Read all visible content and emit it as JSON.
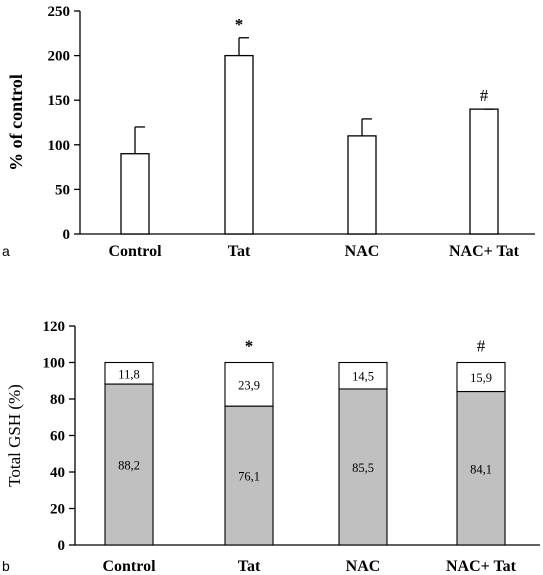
{
  "chart_data": [
    {
      "panel_label": "a",
      "type": "bar",
      "categories": [
        "Control",
        "Tat",
        "NAC",
        "NAC+ Tat"
      ],
      "values": [
        90,
        200,
        110,
        140
      ],
      "error_upper": [
        120,
        220,
        129,
        140
      ],
      "annotations": [
        "",
        "*",
        "",
        "#"
      ],
      "ylabel": "% of control",
      "ylim": [
        0,
        250
      ],
      "yticks": [
        "0",
        "50",
        "100",
        "150",
        "200",
        "250"
      ],
      "grid": false,
      "colors": {
        "bar_fill": "#ffffff",
        "stroke": "#000000"
      }
    },
    {
      "panel_label": "b",
      "type": "bar",
      "stacked": true,
      "categories": [
        "Control",
        "Tat",
        "NAC",
        "NAC+ Tat"
      ],
      "series": [
        {
          "values": [
            88.2,
            76.1,
            85.5,
            84.1
          ],
          "labels": [
            "88,2",
            "76,1",
            "85,5",
            "84,1"
          ],
          "color": "#c0c0c0"
        },
        {
          "values": [
            11.8,
            23.9,
            14.5,
            15.9
          ],
          "labels": [
            "11,8",
            "23,9",
            "14,5",
            "15,9"
          ],
          "color": "#ffffff"
        }
      ],
      "annotations": [
        "",
        "*",
        "",
        "#"
      ],
      "ylabel": "Total GSH (%)",
      "ylim": [
        0,
        120
      ],
      "yticks": [
        "0",
        "20",
        "40",
        "60",
        "80",
        "100",
        "120"
      ],
      "grid": false
    }
  ]
}
